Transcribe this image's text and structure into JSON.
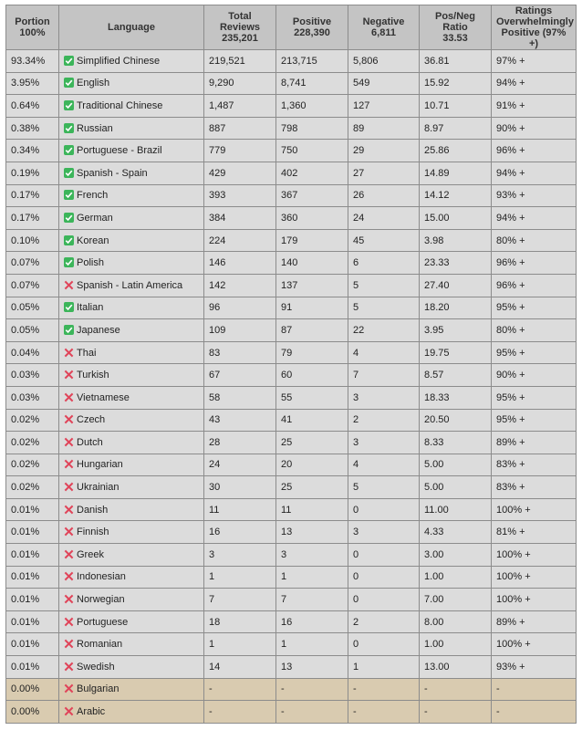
{
  "table": {
    "header": [
      "Portion\n100%",
      "Language",
      "Total\nReviews\n235,201",
      "Positive\n228,390",
      "Negative\n6,811",
      "Pos/Neg\nRatio\n33.53",
      "Ratings\nOverwhelmingly\nPositive (97% +)"
    ],
    "rows": [
      {
        "supported": true,
        "cells": [
          "93.34%",
          "Simplified Chinese",
          "219,521",
          "213,715",
          "5,806",
          "36.81",
          "97% +"
        ]
      },
      {
        "supported": true,
        "cells": [
          "3.95%",
          "English",
          "9,290",
          "8,741",
          "549",
          "15.92",
          "94% +"
        ]
      },
      {
        "supported": true,
        "cells": [
          "0.64%",
          "Traditional Chinese",
          "1,487",
          "1,360",
          "127",
          "10.71",
          "91% +"
        ]
      },
      {
        "supported": true,
        "cells": [
          "0.38%",
          "Russian",
          "887",
          "798",
          "89",
          "8.97",
          "90% +"
        ]
      },
      {
        "supported": true,
        "cells": [
          "0.34%",
          "Portuguese - Brazil",
          "779",
          "750",
          "29",
          "25.86",
          "96% +"
        ]
      },
      {
        "supported": true,
        "cells": [
          "0.19%",
          "Spanish - Spain",
          "429",
          "402",
          "27",
          "14.89",
          "94% +"
        ]
      },
      {
        "supported": true,
        "cells": [
          "0.17%",
          "French",
          "393",
          "367",
          "26",
          "14.12",
          "93% +"
        ]
      },
      {
        "supported": true,
        "cells": [
          "0.17%",
          "German",
          "384",
          "360",
          "24",
          "15.00",
          "94% +"
        ]
      },
      {
        "supported": true,
        "cells": [
          "0.10%",
          "Korean",
          "224",
          "179",
          "45",
          "3.98",
          "80% +"
        ]
      },
      {
        "supported": true,
        "cells": [
          "0.07%",
          "Polish",
          "146",
          "140",
          "6",
          "23.33",
          "96% +"
        ]
      },
      {
        "supported": false,
        "cells": [
          "0.07%",
          "Spanish - Latin America",
          "142",
          "137",
          "5",
          "27.40",
          "96% +"
        ]
      },
      {
        "supported": true,
        "cells": [
          "0.05%",
          "Italian",
          "96",
          "91",
          "5",
          "18.20",
          "95% +"
        ]
      },
      {
        "supported": true,
        "cells": [
          "0.05%",
          "Japanese",
          "109",
          "87",
          "22",
          "3.95",
          "80% +"
        ]
      },
      {
        "supported": false,
        "cells": [
          "0.04%",
          "Thai",
          "83",
          "79",
          "4",
          "19.75",
          "95% +"
        ]
      },
      {
        "supported": false,
        "cells": [
          "0.03%",
          "Turkish",
          "67",
          "60",
          "7",
          "8.57",
          "90% +"
        ]
      },
      {
        "supported": false,
        "cells": [
          "0.03%",
          "Vietnamese",
          "58",
          "55",
          "3",
          "18.33",
          "95% +"
        ]
      },
      {
        "supported": false,
        "cells": [
          "0.02%",
          "Czech",
          "43",
          "41",
          "2",
          "20.50",
          "95% +"
        ]
      },
      {
        "supported": false,
        "cells": [
          "0.02%",
          "Dutch",
          "28",
          "25",
          "3",
          "8.33",
          "89% +"
        ]
      },
      {
        "supported": false,
        "cells": [
          "0.02%",
          "Hungarian",
          "24",
          "20",
          "4",
          "5.00",
          "83% +"
        ]
      },
      {
        "supported": false,
        "cells": [
          "0.02%",
          "Ukrainian",
          "30",
          "25",
          "5",
          "5.00",
          "83% +"
        ]
      },
      {
        "supported": false,
        "cells": [
          "0.01%",
          "Danish",
          "11",
          "11",
          "0",
          "11.00",
          "100% +"
        ]
      },
      {
        "supported": false,
        "cells": [
          "0.01%",
          "Finnish",
          "16",
          "13",
          "3",
          "4.33",
          "81% +"
        ]
      },
      {
        "supported": false,
        "cells": [
          "0.01%",
          "Greek",
          "3",
          "3",
          "0",
          "3.00",
          "100% +"
        ]
      },
      {
        "supported": false,
        "cells": [
          "0.01%",
          "Indonesian",
          "1",
          "1",
          "0",
          "1.00",
          "100% +"
        ]
      },
      {
        "supported": false,
        "cells": [
          "0.01%",
          "Norwegian",
          "7",
          "7",
          "0",
          "7.00",
          "100% +"
        ]
      },
      {
        "supported": false,
        "cells": [
          "0.01%",
          "Portuguese",
          "18",
          "16",
          "2",
          "8.00",
          "89% +"
        ]
      },
      {
        "supported": false,
        "cells": [
          "0.01%",
          "Romanian",
          "1",
          "1",
          "0",
          "1.00",
          "100% +"
        ]
      },
      {
        "supported": false,
        "cells": [
          "0.01%",
          "Swedish",
          "14",
          "13",
          "1",
          "13.00",
          "93% +"
        ]
      },
      {
        "supported": false,
        "highlight": true,
        "cells": [
          "0.00%",
          "Bulgarian",
          "-",
          "-",
          "-",
          "-",
          "-"
        ]
      },
      {
        "supported": false,
        "highlight": true,
        "cells": [
          "0.00%",
          "Arabic",
          "-",
          "-",
          "-",
          "-",
          "-"
        ]
      }
    ]
  }
}
